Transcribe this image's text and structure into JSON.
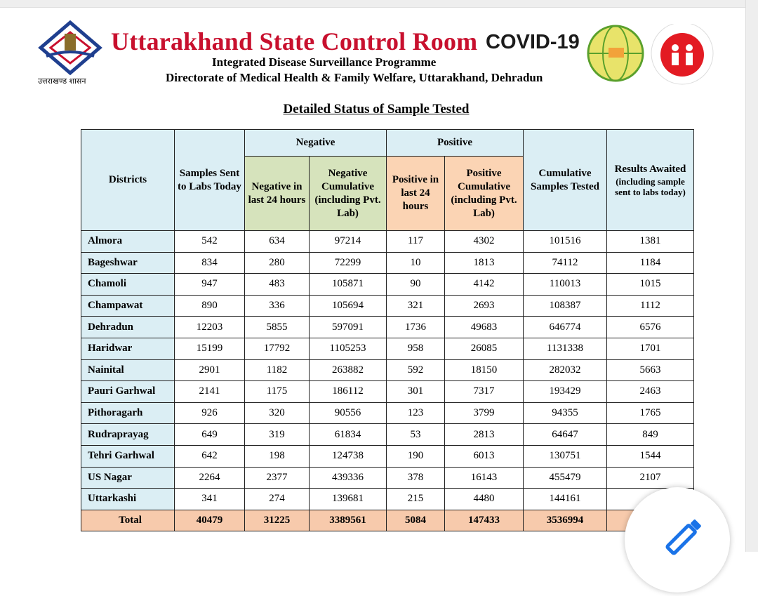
{
  "header": {
    "title": "Uttarakhand State Control Room",
    "covid_logo": "COVID-19",
    "programme": "Integrated Disease Surveillance Programme",
    "directorate": "Directorate of Medical Health & Family Welfare, Uttarakhand, Dehradun",
    "emblem_caption": "उत्तराखण्ड शासन"
  },
  "heading": "Detailed Status of Sample Tested",
  "table": {
    "header_top": [
      "Districts",
      "Samples Sent to Labs Today",
      "Negative",
      "Positive",
      "Cumulative Samples Tested",
      "Results Awaited"
    ],
    "header_note": "(including sample sent to labs today)",
    "header_sub": [
      "Negative in last 24 hours",
      "Negative Cumulative (including Pvt. Lab)",
      "Positive in last 24 hours",
      "Positive Cumulative (including Pvt. Lab)"
    ],
    "rows": [
      [
        "Almora",
        542,
        634,
        97214,
        117,
        4302,
        101516,
        1381
      ],
      [
        "Bageshwar",
        834,
        280,
        72299,
        10,
        1813,
        74112,
        1184
      ],
      [
        "Chamoli",
        947,
        483,
        105871,
        90,
        4142,
        110013,
        1015
      ],
      [
        "Champawat",
        890,
        336,
        105694,
        321,
        2693,
        108387,
        1112
      ],
      [
        "Dehradun",
        12203,
        5855,
        597091,
        1736,
        49683,
        646774,
        6576
      ],
      [
        "Haridwar",
        15199,
        17792,
        1105253,
        958,
        26085,
        1131338,
        1701
      ],
      [
        "Nainital",
        2901,
        1182,
        263882,
        592,
        18150,
        282032,
        5663
      ],
      [
        "Pauri Garhwal",
        2141,
        1175,
        186112,
        301,
        7317,
        193429,
        2463
      ],
      [
        "Pithoragarh",
        926,
        320,
        90556,
        123,
        3799,
        94355,
        1765
      ],
      [
        "Rudraprayag",
        649,
        319,
        61834,
        53,
        2813,
        64647,
        849
      ],
      [
        "Tehri Garhwal",
        642,
        198,
        124738,
        190,
        6013,
        130751,
        1544
      ],
      [
        "US Nagar",
        2264,
        2377,
        439336,
        378,
        16143,
        455479,
        2107
      ],
      [
        "Uttarkashi",
        341,
        274,
        139681,
        215,
        4480,
        144161
      ]
    ],
    "total": [
      "Total",
      40479,
      31225,
      3389561,
      5084,
      147433,
      3536994
    ]
  }
}
